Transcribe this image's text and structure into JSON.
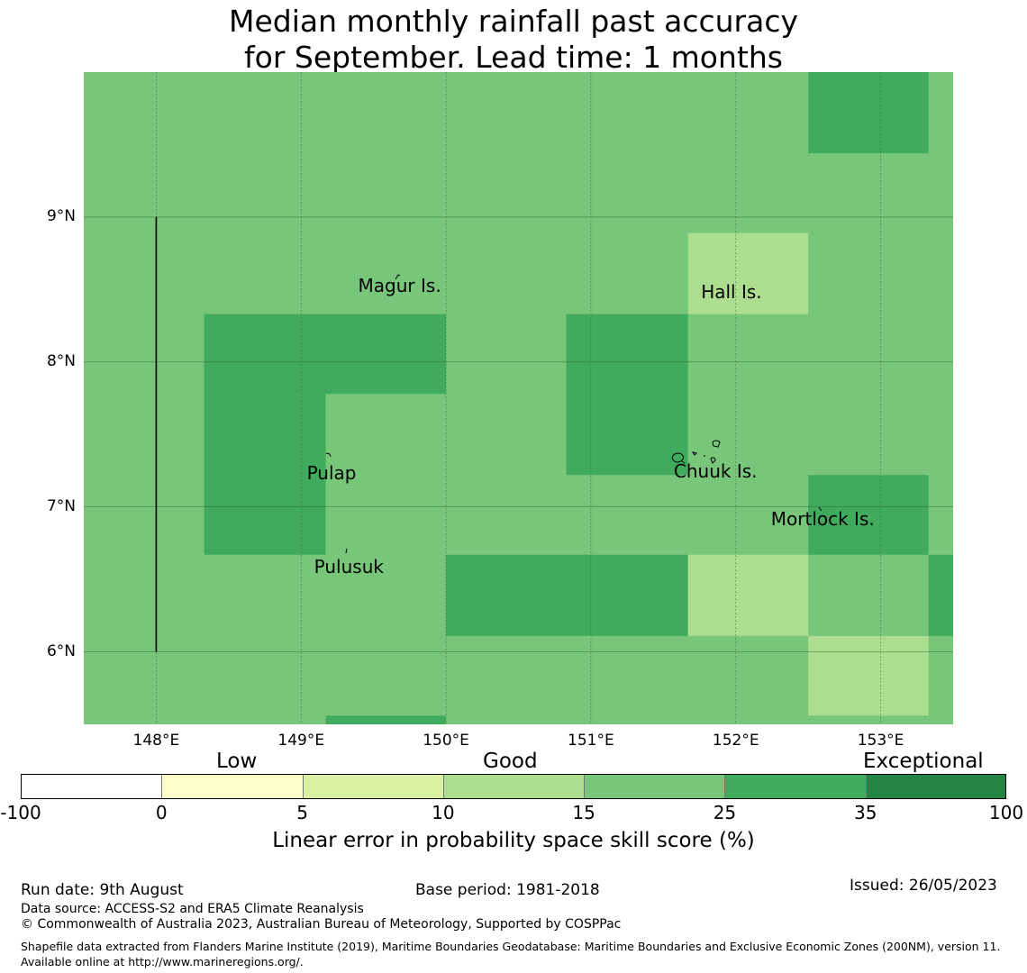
{
  "title": {
    "line1": "Median monthly rainfall past accuracy",
    "line2": "for September. Lead time: 1 months"
  },
  "map": {
    "latitude_labels": [
      "9°N",
      "8°N",
      "7°N",
      "6°N"
    ],
    "longitude_labels": [
      "148°E",
      "149°E",
      "150°E",
      "151°E",
      "152°E",
      "153°E"
    ],
    "grid_lon": [
      148,
      149,
      150,
      151,
      152,
      153
    ],
    "grid_lat": [
      9,
      8,
      7,
      6
    ],
    "extent": {
      "lon_min": 147.5,
      "lon_max": 153.5,
      "lat_min": 5.5,
      "lat_max": 10.0
    },
    "base_color": "#78c679",
    "cells": [
      {
        "lon0": 152.5,
        "lon1": 153.33,
        "lat0": 9.44,
        "lat1": 10.0,
        "color": "#41ab5d"
      },
      {
        "lon0": 151.67,
        "lon1": 152.5,
        "lat0": 8.33,
        "lat1": 8.89,
        "color": "#addd8e"
      },
      {
        "lon0": 148.33,
        "lon1": 150.0,
        "lat0": 7.78,
        "lat1": 8.33,
        "color": "#41ab5d"
      },
      {
        "lon0": 148.33,
        "lon1": 149.17,
        "lat0": 6.67,
        "lat1": 7.78,
        "color": "#41ab5d"
      },
      {
        "lon0": 150.83,
        "lon1": 151.67,
        "lat0": 7.22,
        "lat1": 8.33,
        "color": "#41ab5d"
      },
      {
        "lon0": 152.5,
        "lon1": 153.33,
        "lat0": 6.67,
        "lat1": 7.22,
        "color": "#41ab5d"
      },
      {
        "lon0": 150.0,
        "lon1": 151.67,
        "lat0": 6.11,
        "lat1": 6.67,
        "color": "#41ab5d"
      },
      {
        "lon0": 151.67,
        "lon1": 152.5,
        "lat0": 6.11,
        "lat1": 6.67,
        "color": "#addd8e"
      },
      {
        "lon0": 153.33,
        "lon1": 153.5,
        "lat0": 6.11,
        "lat1": 6.67,
        "color": "#41ab5d"
      },
      {
        "lon0": 152.5,
        "lon1": 153.33,
        "lat0": 5.56,
        "lat1": 6.11,
        "color": "#addd8e"
      },
      {
        "lon0": 149.17,
        "lon1": 150.0,
        "lat0": 5.5,
        "lat1": 5.56,
        "color": "#41ab5d"
      }
    ],
    "boundary_line": {
      "lon": 148.0,
      "lat_top": 9.0,
      "lat_bottom": 6.0
    },
    "places": [
      {
        "name": "Magur Is.",
        "lon": 149.68,
        "lat": 8.52
      },
      {
        "name": "Hall Is.",
        "lon": 151.97,
        "lat": 8.48
      },
      {
        "name": "Pulap",
        "lon": 149.21,
        "lat": 7.23
      },
      {
        "name": "Chuuk Is.",
        "lon": 151.86,
        "lat": 7.24
      },
      {
        "name": "Mortlock Is.",
        "lon": 152.6,
        "lat": 6.91
      },
      {
        "name": "Pulusuk",
        "lon": 149.33,
        "lat": 6.58
      }
    ]
  },
  "colorbar": {
    "categories": [
      "Low",
      "Good",
      "Exceptional"
    ],
    "ticks": [
      "-100",
      "0",
      "5",
      "10",
      "15",
      "25",
      "35",
      "100"
    ],
    "colors": [
      "#ffffff",
      "#ffffcc",
      "#d9f0a3",
      "#addd8e",
      "#78c679",
      "#41ab5d",
      "#238443"
    ],
    "label": "Linear error in probability space skill score (%)"
  },
  "footer": {
    "run_date": "Run date: 9th August",
    "base_period": "Base period: 1981-2018",
    "issued": "Issued: 26/05/2023",
    "data_source": "Data source: ACCESS-S2 and ERA5 Climate Reanalysis",
    "copyright": "© Commonwealth of Australia 2023, Australian Bureau of Meteorology, Supported by COSPPac",
    "shapefile": "Shapefile data extracted from Flanders Marine Institute (2019), Maritime Boundaries Geodatabase: Maritime Boundaries and Exclusive Economic Zones (200NM), version 11. Available online at http://www.marineregions.org/."
  }
}
